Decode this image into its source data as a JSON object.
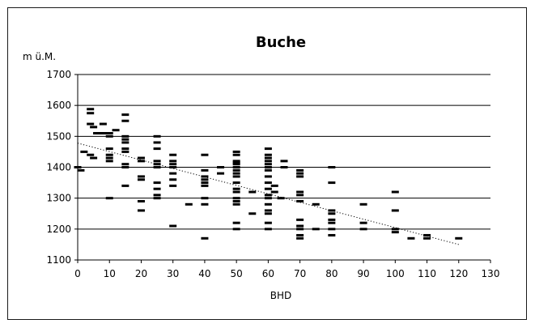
{
  "chart_data": {
    "type": "scatter",
    "title": "Buche",
    "xlabel": "BHD",
    "ylabel": "m ü.M.",
    "xlim": [
      0,
      130
    ],
    "ylim": [
      1100,
      1700
    ],
    "xticks": [
      0,
      10,
      20,
      30,
      40,
      50,
      60,
      70,
      80,
      90,
      100,
      110,
      120,
      130
    ],
    "yticks": [
      1100,
      1200,
      1300,
      1400,
      1500,
      1600,
      1700
    ],
    "grid": "horizontal",
    "marker": "dash",
    "trendline": {
      "x": [
        0,
        120
      ],
      "y": [
        1478,
        1150
      ],
      "style": "dotted"
    },
    "points": [
      [
        0,
        1400
      ],
      [
        1,
        1390
      ],
      [
        2,
        1450
      ],
      [
        4,
        1588
      ],
      [
        4,
        1575
      ],
      [
        4,
        1540
      ],
      [
        4,
        1440
      ],
      [
        5,
        1530
      ],
      [
        5,
        1430
      ],
      [
        6,
        1510
      ],
      [
        7,
        1510
      ],
      [
        8,
        1540
      ],
      [
        8,
        1510
      ],
      [
        10,
        1510
      ],
      [
        10,
        1500
      ],
      [
        10,
        1460
      ],
      [
        10,
        1440
      ],
      [
        10,
        1430
      ],
      [
        10,
        1420
      ],
      [
        10,
        1300
      ],
      [
        12,
        1520
      ],
      [
        15,
        1570
      ],
      [
        15,
        1550
      ],
      [
        15,
        1500
      ],
      [
        15,
        1490
      ],
      [
        15,
        1480
      ],
      [
        15,
        1460
      ],
      [
        15,
        1450
      ],
      [
        15,
        1410
      ],
      [
        15,
        1400
      ],
      [
        15,
        1340
      ],
      [
        20,
        1430
      ],
      [
        20,
        1420
      ],
      [
        20,
        1370
      ],
      [
        20,
        1360
      ],
      [
        20,
        1290
      ],
      [
        20,
        1260
      ],
      [
        25,
        1500
      ],
      [
        25,
        1480
      ],
      [
        25,
        1460
      ],
      [
        25,
        1420
      ],
      [
        25,
        1410
      ],
      [
        25,
        1400
      ],
      [
        25,
        1350
      ],
      [
        25,
        1330
      ],
      [
        25,
        1310
      ],
      [
        25,
        1300
      ],
      [
        30,
        1440
      ],
      [
        30,
        1420
      ],
      [
        30,
        1410
      ],
      [
        30,
        1400
      ],
      [
        30,
        1380
      ],
      [
        30,
        1360
      ],
      [
        30,
        1340
      ],
      [
        30,
        1210
      ],
      [
        35,
        1280
      ],
      [
        40,
        1440
      ],
      [
        40,
        1390
      ],
      [
        40,
        1370
      ],
      [
        40,
        1360
      ],
      [
        40,
        1350
      ],
      [
        40,
        1340
      ],
      [
        40,
        1300
      ],
      [
        40,
        1280
      ],
      [
        40,
        1170
      ],
      [
        45,
        1400
      ],
      [
        45,
        1380
      ],
      [
        50,
        1450
      ],
      [
        50,
        1440
      ],
      [
        50,
        1420
      ],
      [
        50,
        1415
      ],
      [
        50,
        1410
      ],
      [
        50,
        1400
      ],
      [
        50,
        1390
      ],
      [
        50,
        1380
      ],
      [
        50,
        1370
      ],
      [
        50,
        1350
      ],
      [
        50,
        1330
      ],
      [
        50,
        1320
      ],
      [
        50,
        1300
      ],
      [
        50,
        1290
      ],
      [
        50,
        1280
      ],
      [
        50,
        1220
      ],
      [
        50,
        1200
      ],
      [
        55,
        1320
      ],
      [
        55,
        1250
      ],
      [
        60,
        1460
      ],
      [
        60,
        1440
      ],
      [
        60,
        1430
      ],
      [
        60,
        1420
      ],
      [
        60,
        1410
      ],
      [
        60,
        1400
      ],
      [
        60,
        1390
      ],
      [
        60,
        1370
      ],
      [
        60,
        1350
      ],
      [
        60,
        1330
      ],
      [
        60,
        1310
      ],
      [
        60,
        1300
      ],
      [
        60,
        1280
      ],
      [
        60,
        1260
      ],
      [
        60,
        1250
      ],
      [
        60,
        1220
      ],
      [
        60,
        1200
      ],
      [
        62,
        1340
      ],
      [
        62,
        1320
      ],
      [
        64,
        1300
      ],
      [
        65,
        1420
      ],
      [
        65,
        1400
      ],
      [
        70,
        1390
      ],
      [
        70,
        1380
      ],
      [
        70,
        1370
      ],
      [
        70,
        1320
      ],
      [
        70,
        1310
      ],
      [
        70,
        1290
      ],
      [
        70,
        1230
      ],
      [
        70,
        1210
      ],
      [
        70,
        1200
      ],
      [
        70,
        1180
      ],
      [
        70,
        1170
      ],
      [
        75,
        1280
      ],
      [
        75,
        1200
      ],
      [
        80,
        1400
      ],
      [
        80,
        1350
      ],
      [
        80,
        1260
      ],
      [
        80,
        1250
      ],
      [
        80,
        1230
      ],
      [
        80,
        1220
      ],
      [
        80,
        1200
      ],
      [
        80,
        1180
      ],
      [
        90,
        1280
      ],
      [
        90,
        1220
      ],
      [
        90,
        1200
      ],
      [
        100,
        1320
      ],
      [
        100,
        1260
      ],
      [
        100,
        1200
      ],
      [
        100,
        1190
      ],
      [
        105,
        1170
      ],
      [
        110,
        1180
      ],
      [
        110,
        1170
      ],
      [
        120,
        1170
      ]
    ]
  }
}
